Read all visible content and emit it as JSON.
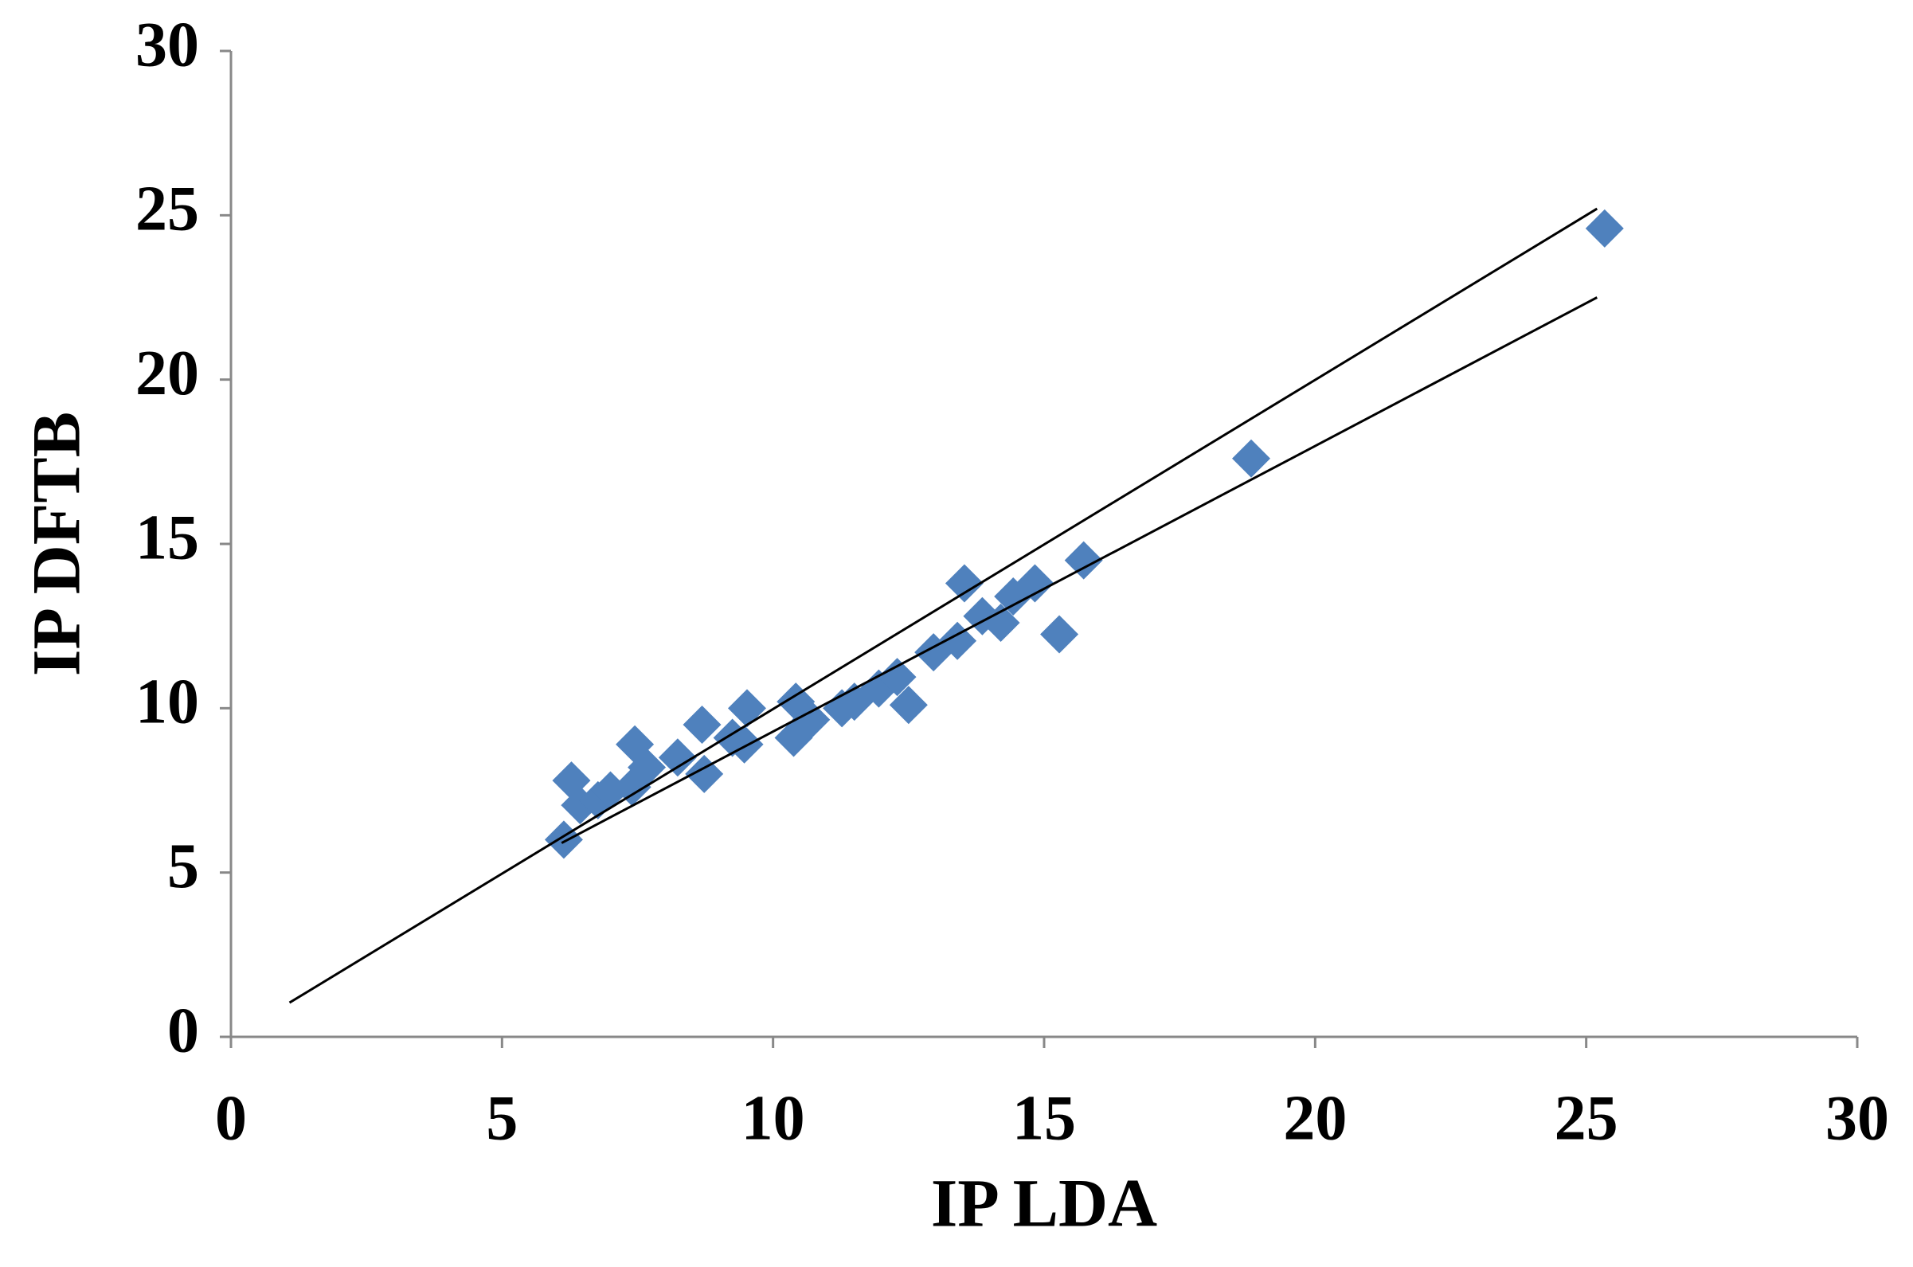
{
  "chart_data": {
    "type": "scatter",
    "x_label": "IP LDA",
    "y_label": "IP DFTB",
    "xlim": [
      0,
      30
    ],
    "xticks": [
      0,
      5,
      10,
      15,
      20,
      25,
      30
    ],
    "ylim": [
      0,
      30
    ],
    "yticks": [
      0,
      5,
      10,
      15,
      20,
      25,
      30
    ],
    "series": [
      {
        "type": "scatter",
        "marker": "diamond",
        "color": "#4f81bd",
        "x": [
          6.14,
          6.28,
          6.44,
          6.77,
          7.0,
          7.45,
          7.4,
          7.67,
          8.24,
          8.69,
          8.73,
          9.25,
          9.52,
          9.47,
          10.38,
          10.42,
          10.7,
          11.27,
          11.5,
          11.95,
          12.29,
          12.5,
          12.96,
          13.4,
          13.53,
          13.86,
          14.2,
          14.43,
          14.83,
          15.28,
          15.73,
          18.82,
          25.34
        ],
        "values": [
          6.0,
          7.8,
          7.05,
          7.2,
          7.5,
          8.9,
          7.6,
          8.2,
          8.5,
          9.5,
          8.0,
          9.1,
          10.0,
          8.9,
          9.1,
          10.2,
          9.65,
          10.0,
          10.2,
          10.6,
          10.95,
          10.1,
          11.7,
          12.05,
          13.8,
          12.8,
          12.6,
          13.4,
          13.8,
          12.25,
          14.5,
          17.6,
          24.6
        ]
      },
      {
        "type": "line",
        "color": "#000000",
        "x": [
          1.08,
          25.2
        ],
        "values": [
          1.04,
          25.2
        ]
      },
      {
        "type": "line",
        "color": "#000000",
        "x": [
          6.1,
          25.2
        ],
        "values": [
          5.9,
          22.5
        ]
      }
    ]
  }
}
